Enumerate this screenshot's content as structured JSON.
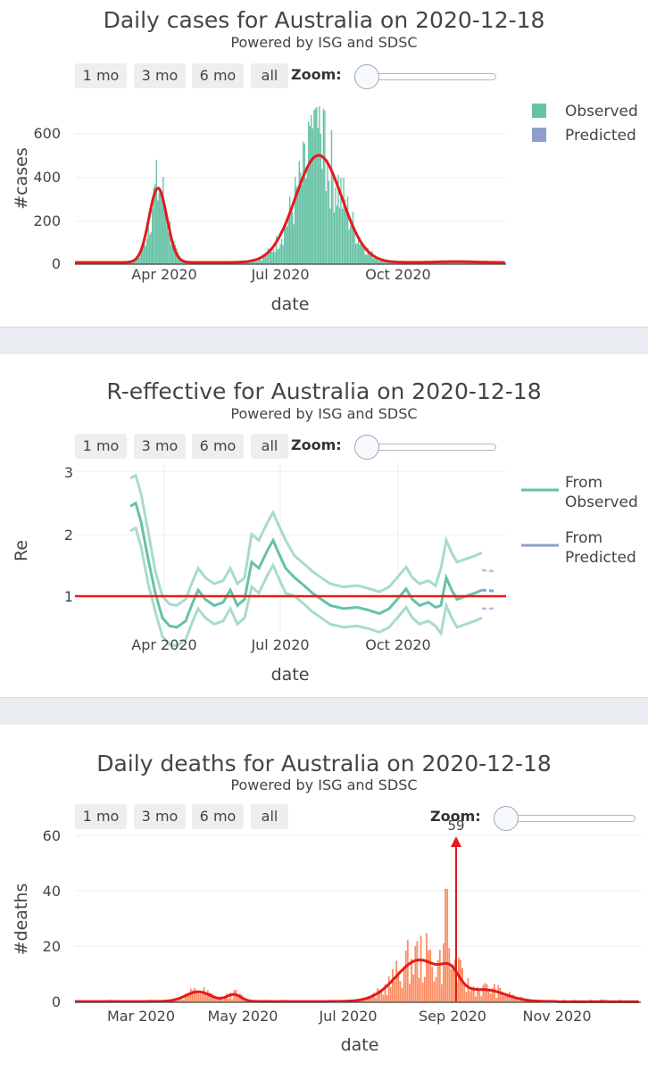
{
  "range_buttons": [
    "1 mo",
    "3 mo",
    "6 mo",
    "all"
  ],
  "zoom_label": "Zoom:",
  "subtitle": "Powered by ISG and SDSC",
  "colors": {
    "observed": "#66c2a5",
    "predicted": "#8da0cb",
    "fit": "#e41a1c",
    "deaths": "#fc8d62"
  },
  "chart_data": [
    {
      "type": "bar",
      "title": "Daily cases for Australia on 2020-12-18",
      "xlabel": "date",
      "ylabel": "#cases",
      "x_ticks": [
        "Apr 2020",
        "Jul 2020",
        "Oct 2020"
      ],
      "y_ticks": [
        "0",
        "200",
        "400",
        "600"
      ],
      "ylim": [
        0,
        740
      ],
      "legend": [
        "Observed",
        "Predicted"
      ],
      "legend_position": "top-right",
      "smooth_peaks": [
        {
          "date": "2020-03-28",
          "value": 340
        },
        {
          "date": "2020-08-05",
          "value": 490
        }
      ],
      "max_observed": 720
    },
    {
      "type": "line",
      "title": "R-effective for Australia on 2020-12-18",
      "xlabel": "date",
      "ylabel": "Re",
      "x_ticks": [
        "Apr 2020",
        "Jul 2020",
        "Oct 2020"
      ],
      "y_ticks": [
        "1",
        "2",
        "3"
      ],
      "ylim": [
        0.3,
        3.1
      ],
      "legend": [
        "From Observed",
        "From Predicted"
      ],
      "legend_position": "top-right",
      "reference_line": 1,
      "re_observed_start": 2.45,
      "re_observed_end": 1.1
    },
    {
      "type": "bar",
      "title": "Daily deaths for Australia on 2020-12-18",
      "xlabel": "date",
      "ylabel": "#deaths",
      "x_ticks": [
        "Mar 2020",
        "May 2020",
        "Jul 2020",
        "Sep 2020",
        "Nov 2020"
      ],
      "y_ticks": [
        "0",
        "20",
        "40",
        "60"
      ],
      "ylim": [
        0,
        62
      ],
      "annotation": {
        "text": "59",
        "date": "2020-09-04",
        "value": 59
      },
      "max_smoothed": 18
    }
  ]
}
